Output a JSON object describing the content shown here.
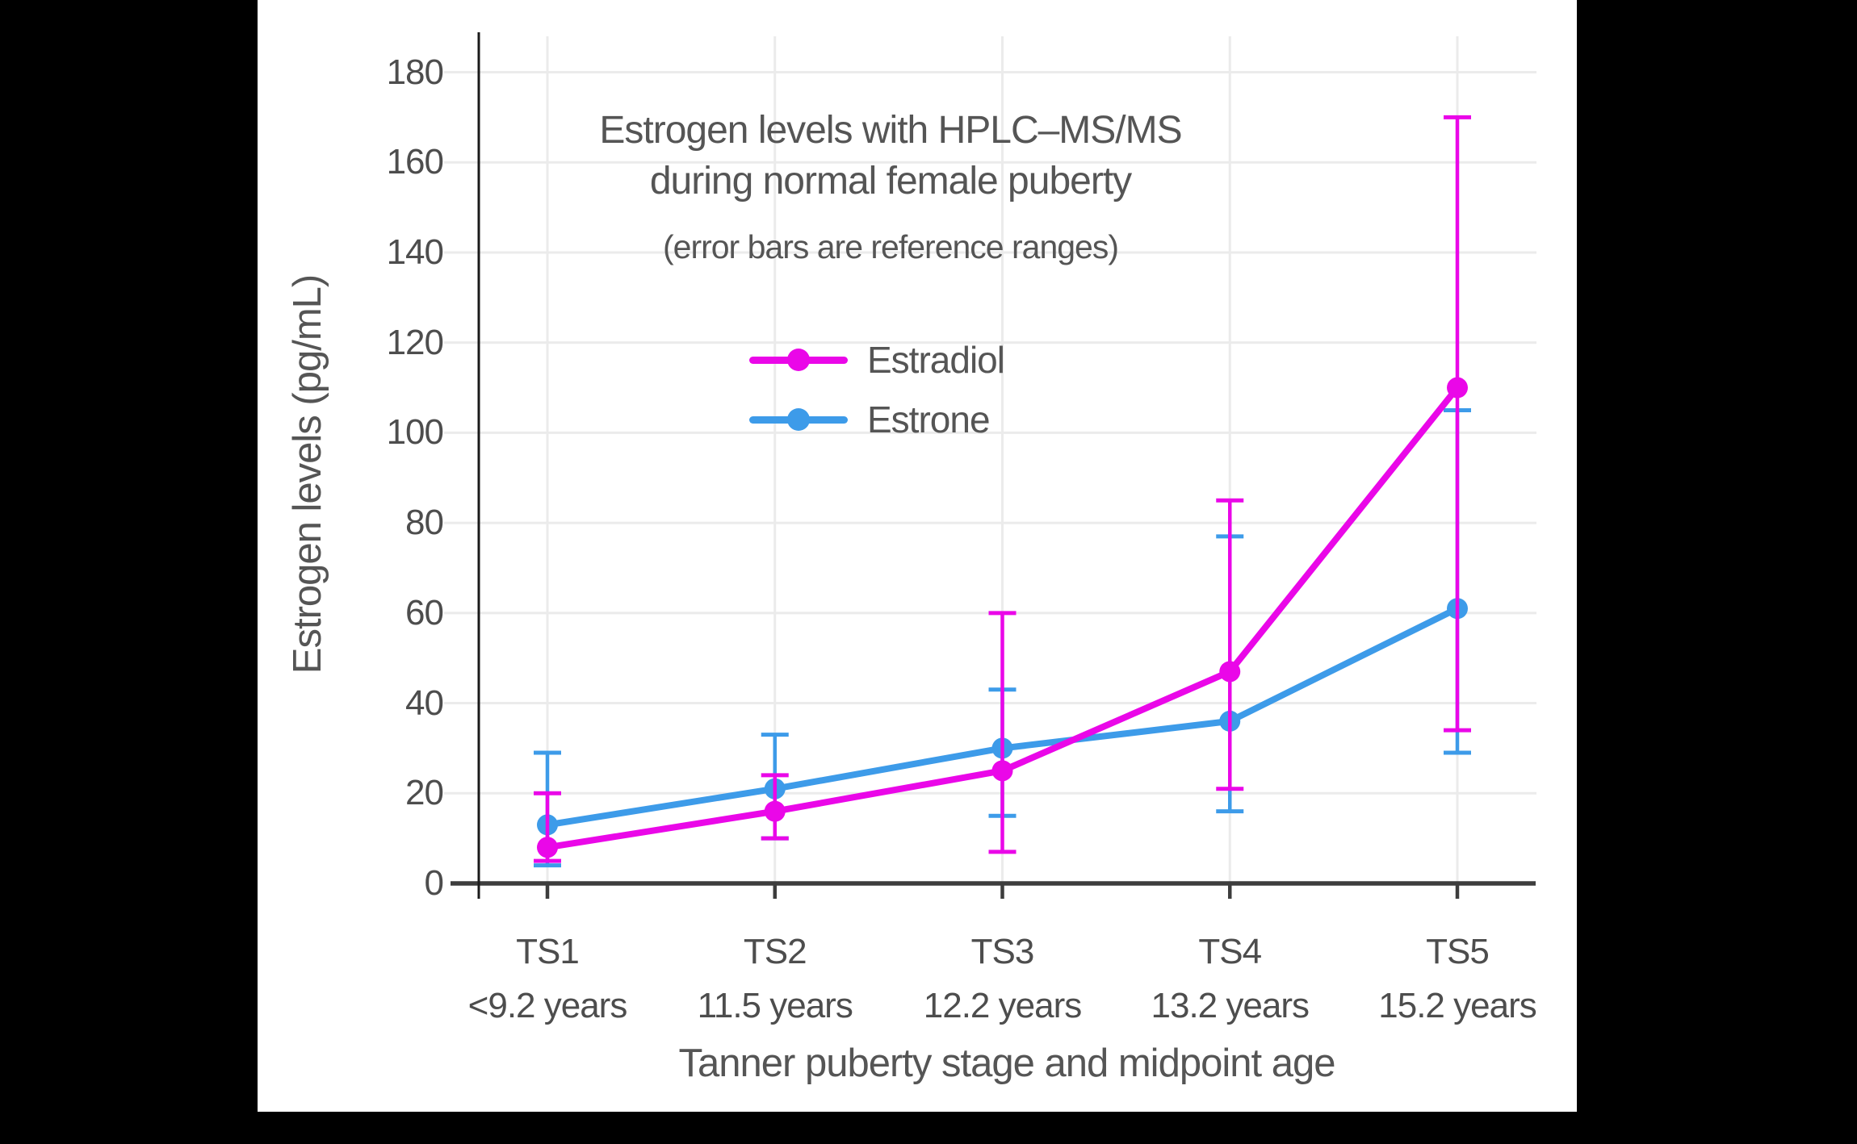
{
  "chart_data": {
    "type": "line",
    "title_lines": [
      "Estrogen levels with HPLC–MS/MS",
      "during normal female puberty"
    ],
    "subtitle": "(error bars are reference ranges)",
    "xlabel": "Tanner puberty stage and midpoint age",
    "ylabel": "Estrogen levels (pg/mL)",
    "categories": [
      "TS1",
      "TS2",
      "TS3",
      "TS4",
      "TS5"
    ],
    "category_sublabels": [
      "<9.2 years",
      "11.5 years",
      "12.2 years",
      "13.2 years",
      "15.2 years"
    ],
    "yticks": [
      0,
      20,
      40,
      60,
      80,
      100,
      120,
      140,
      160,
      180
    ],
    "ylim": [
      0,
      189
    ],
    "grid": true,
    "legend_position": "upper-center",
    "error_bar_meaning": "reference ranges",
    "series": [
      {
        "name": "Estradiol",
        "color": "#EA07E8",
        "values": [
          8,
          16,
          25,
          47,
          110
        ],
        "err_low": [
          5,
          10,
          7,
          21,
          34
        ],
        "err_high": [
          20,
          24,
          60,
          85,
          170
        ]
      },
      {
        "name": "Estrone",
        "color": "#3D9BE9",
        "values": [
          13,
          21,
          30,
          36,
          61
        ],
        "err_low": [
          4,
          10,
          15,
          16,
          29
        ],
        "err_high": [
          29,
          33,
          43,
          77,
          105
        ]
      }
    ],
    "colors": {
      "background": "#000000",
      "canvas": "#ffffff",
      "grid": "#ebebeb",
      "x_axis": "#3d3d3d",
      "y_axis": "#1a1a1a",
      "text": "#555555"
    }
  }
}
